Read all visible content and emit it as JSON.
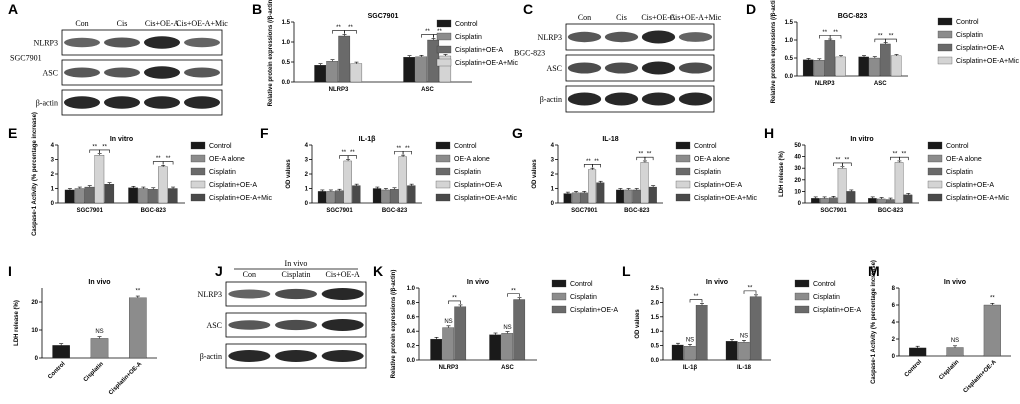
{
  "panel_letters": [
    "A",
    "B",
    "C",
    "D",
    "E",
    "F",
    "G",
    "H",
    "I",
    "J",
    "K",
    "L",
    "M"
  ],
  "colors": {
    "dark": "#1a1a1a",
    "grey": "#8c8c8c",
    "mid": "#6a6a6a",
    "light": "#d4d4d4",
    "bg": "#ffffff"
  },
  "blots": [
    {
      "letter": "A",
      "cell_line": "SGC7901",
      "columns": [
        "Con",
        "Cis",
        "Cis+OE-A",
        "Cis+OE-A+Mic"
      ],
      "rows": [
        "NLRP3",
        "ASC",
        "β-actin"
      ]
    },
    {
      "letter": "C",
      "cell_line": "BGC-823",
      "columns": [
        "Con",
        "Cis",
        "Cis+OE-A",
        "Cis+OE-A+Mic"
      ],
      "rows": [
        "NLRP3",
        "ASC",
        "β-actin"
      ]
    },
    {
      "letter": "J",
      "header": "In vivo",
      "columns": [
        "Con",
        "Cisplatin",
        "Cis+OE-A"
      ],
      "rows": [
        "NLRP3",
        "ASC",
        "β-actin"
      ]
    }
  ],
  "chart_data": [
    {
      "id": "B",
      "type": "bar",
      "title": "SGC7901",
      "ylabel": "Relative protein expressions (/β-actin)",
      "xlabel": "",
      "categories": [
        "NLRP3",
        "ASC"
      ],
      "ylim": [
        0,
        1.5
      ],
      "yticks": [
        "0.0",
        "0.5",
        "1.0",
        "1.5"
      ],
      "legend": "right",
      "series": [
        {
          "name": "Control",
          "color": "#1a1a1a",
          "values": [
            0.42,
            0.62
          ]
        },
        {
          "name": "Cisplatin",
          "color": "#8c8c8c",
          "values": [
            0.52,
            0.63
          ]
        },
        {
          "name": "Cisplatin+OE-A",
          "color": "#6a6a6a",
          "values": [
            1.15,
            1.05
          ]
        },
        {
          "name": "Cisplatin+OE-A+Mic",
          "color": "#d4d4d4",
          "values": [
            0.46,
            0.65
          ]
        }
      ],
      "annotations": [
        "**",
        "**",
        "**",
        "**"
      ]
    },
    {
      "id": "D",
      "type": "bar",
      "title": "BGC-823",
      "ylabel": "Relative protein expressions (/β-actin)",
      "xlabel": "",
      "categories": [
        "NLRP3",
        "ASC"
      ],
      "ylim": [
        0,
        1.5
      ],
      "yticks": [
        "0.0",
        "0.5",
        "1.0",
        "1.5"
      ],
      "legend": "right",
      "series": [
        {
          "name": "Control",
          "color": "#1a1a1a",
          "values": [
            0.45,
            0.53
          ]
        },
        {
          "name": "Cisplatin",
          "color": "#8c8c8c",
          "values": [
            0.44,
            0.5
          ]
        },
        {
          "name": "Cisplatin+OE-A",
          "color": "#6a6a6a",
          "values": [
            0.99,
            0.89
          ]
        },
        {
          "name": "Cisplatin+OE-A+Mic",
          "color": "#d4d4d4",
          "values": [
            0.53,
            0.56
          ]
        }
      ],
      "annotations": [
        "**",
        "**",
        "**",
        "**"
      ]
    },
    {
      "id": "E",
      "type": "bar",
      "title": "In vitro",
      "ylabel": "Caspase-1 Activity (% percentage increase)",
      "xlabel": "",
      "categories": [
        "SGC7901",
        "BGC-823"
      ],
      "ylim": [
        0,
        4
      ],
      "yticks": [
        "0",
        "1",
        "2",
        "3",
        "4"
      ],
      "legend": "right",
      "series": [
        {
          "name": "Control",
          "color": "#1a1a1a",
          "values": [
            0.9,
            1.05
          ]
        },
        {
          "name": "OE-A alone",
          "color": "#8c8c8c",
          "values": [
            1.0,
            1.0
          ]
        },
        {
          "name": "Cisplatin",
          "color": "#6a6a6a",
          "values": [
            1.1,
            0.95
          ]
        },
        {
          "name": "Cisplatin+OE-A",
          "color": "#d4d4d4",
          "values": [
            3.3,
            2.5
          ]
        },
        {
          "name": "Cisplatin+OE-A+Mic",
          "color": "#4a4a4a",
          "values": [
            1.3,
            1.0
          ]
        }
      ],
      "annotations": [
        "**",
        "**",
        "**",
        "**"
      ]
    },
    {
      "id": "F",
      "type": "bar",
      "title": "IL-1β",
      "ylabel": "OD values",
      "xlabel": "",
      "categories": [
        "SGC7901",
        "BGC-823"
      ],
      "ylim": [
        0,
        4
      ],
      "yticks": [
        "0",
        "1",
        "2",
        "3",
        "4"
      ],
      "legend": "right",
      "series": [
        {
          "name": "Control",
          "color": "#1a1a1a",
          "values": [
            0.8,
            1.0
          ]
        },
        {
          "name": "OE-A alone",
          "color": "#8c8c8c",
          "values": [
            0.8,
            0.9
          ]
        },
        {
          "name": "Cisplatin",
          "color": "#6a6a6a",
          "values": [
            0.85,
            0.95
          ]
        },
        {
          "name": "Cisplatin+OE-A",
          "color": "#d4d4d4",
          "values": [
            2.9,
            3.2
          ]
        },
        {
          "name": "Cisplatin+OE-A+Mic",
          "color": "#4a4a4a",
          "values": [
            1.2,
            1.2
          ]
        }
      ],
      "annotations": [
        "**",
        "**",
        "**",
        "**"
      ]
    },
    {
      "id": "G",
      "type": "bar",
      "title": "IL-18",
      "ylabel": "OD values",
      "xlabel": "",
      "categories": [
        "SGC7901",
        "BGC-823"
      ],
      "ylim": [
        0,
        4
      ],
      "yticks": [
        "0",
        "1",
        "2",
        "3",
        "4"
      ],
      "legend": "right",
      "series": [
        {
          "name": "Control",
          "color": "#1a1a1a",
          "values": [
            0.65,
            0.9
          ]
        },
        {
          "name": "OE-A alone",
          "color": "#8c8c8c",
          "values": [
            0.7,
            0.9
          ]
        },
        {
          "name": "Cisplatin",
          "color": "#6a6a6a",
          "values": [
            0.7,
            0.9
          ]
        },
        {
          "name": "Cisplatin+OE-A",
          "color": "#d4d4d4",
          "values": [
            2.3,
            2.8
          ]
        },
        {
          "name": "Cisplatin+OE-A+Mic",
          "color": "#4a4a4a",
          "values": [
            1.4,
            1.1
          ]
        }
      ],
      "annotations": [
        "**",
        "**",
        "**",
        "**"
      ]
    },
    {
      "id": "H",
      "type": "bar",
      "title": "In vitro",
      "ylabel": "LDH release (%)",
      "xlabel": "",
      "categories": [
        "SGC7901",
        "BGC-823"
      ],
      "ylim": [
        0,
        50
      ],
      "yticks": [
        "0",
        "10",
        "20",
        "30",
        "40",
        "50"
      ],
      "legend": "right",
      "series": [
        {
          "name": "Control",
          "color": "#1a1a1a",
          "values": [
            4,
            4
          ]
        },
        {
          "name": "OE-A alone",
          "color": "#8c8c8c",
          "values": [
            4,
            3.5
          ]
        },
        {
          "name": "Cisplatin",
          "color": "#6a6a6a",
          "values": [
            4.5,
            3
          ]
        },
        {
          "name": "Cisplatin+OE-A",
          "color": "#d4d4d4",
          "values": [
            30,
            35
          ]
        },
        {
          "name": "Cisplatin+OE-A+Mic",
          "color": "#4a4a4a",
          "values": [
            10,
            7
          ]
        }
      ],
      "annotations": [
        "**",
        "**",
        "**",
        "**"
      ]
    },
    {
      "id": "I",
      "type": "bar",
      "title": "In vivo",
      "ylabel": "LDH release (%)",
      "xlabel": "",
      "categories": [
        "Control",
        "Cisplatin",
        "Cisplatin+OE-A"
      ],
      "ylim": [
        0,
        25
      ],
      "yticks": [
        "0",
        "10",
        "20"
      ],
      "legend": "none",
      "series": [
        {
          "name": "",
          "color": "#1a1a1a",
          "values": [
            4.5,
            7,
            21.5
          ],
          "colors": [
            "#1a1a1a",
            "#8c8c8c",
            "#8c8c8c"
          ]
        }
      ],
      "annotations": [
        "NS",
        "**"
      ]
    },
    {
      "id": "K",
      "type": "bar",
      "title": "In vivo",
      "ylabel": "Relative protein expressions (/β-actin)",
      "xlabel": "",
      "categories": [
        "NLRP3",
        "ASC"
      ],
      "ylim": [
        0,
        1.0
      ],
      "yticks": [
        "0.0",
        "0.2",
        "0.4",
        "0.6",
        "0.8",
        "1.0"
      ],
      "legend": "right",
      "series": [
        {
          "name": "Control",
          "color": "#1a1a1a",
          "values": [
            0.29,
            0.35
          ]
        },
        {
          "name": "Cisplatin",
          "color": "#8c8c8c",
          "values": [
            0.45,
            0.37
          ]
        },
        {
          "name": "Cisplatin+OE-A",
          "color": "#6a6a6a",
          "values": [
            0.74,
            0.84
          ]
        }
      ],
      "annotations": [
        "NS",
        "**",
        "NS",
        "**"
      ]
    },
    {
      "id": "L",
      "type": "bar",
      "title": "In vivo",
      "ylabel": "OD values",
      "xlabel": "",
      "categories": [
        "IL-1β",
        "IL-18"
      ],
      "ylim": [
        0,
        2.5
      ],
      "yticks": [
        "0.0",
        "0.5",
        "1.0",
        "1.5",
        "2.0",
        "2.5"
      ],
      "legend": "right",
      "series": [
        {
          "name": "Control",
          "color": "#1a1a1a",
          "values": [
            0.52,
            0.65
          ]
        },
        {
          "name": "Cisplatin",
          "color": "#8c8c8c",
          "values": [
            0.48,
            0.62
          ]
        },
        {
          "name": "Cisplatin+OE-A",
          "color": "#6a6a6a",
          "values": [
            1.9,
            2.2
          ]
        }
      ],
      "annotations": [
        "NS",
        "**",
        "NS",
        "**"
      ]
    },
    {
      "id": "M",
      "type": "bar",
      "title": "In vivo",
      "ylabel": "Caspase-1 Activity (% percentage increase)",
      "xlabel": "",
      "categories": [
        "Control",
        "Cisplatin",
        "Cisplatin+OE-A"
      ],
      "ylim": [
        0,
        8
      ],
      "yticks": [
        "0",
        "2",
        "4",
        "6",
        "8"
      ],
      "legend": "none",
      "series": [
        {
          "name": "",
          "color": "#1a1a1a",
          "values": [
            0.95,
            1.0,
            6.0
          ],
          "colors": [
            "#1a1a1a",
            "#8c8c8c",
            "#8c8c8c"
          ]
        }
      ],
      "annotations": [
        "NS",
        "**"
      ]
    }
  ]
}
